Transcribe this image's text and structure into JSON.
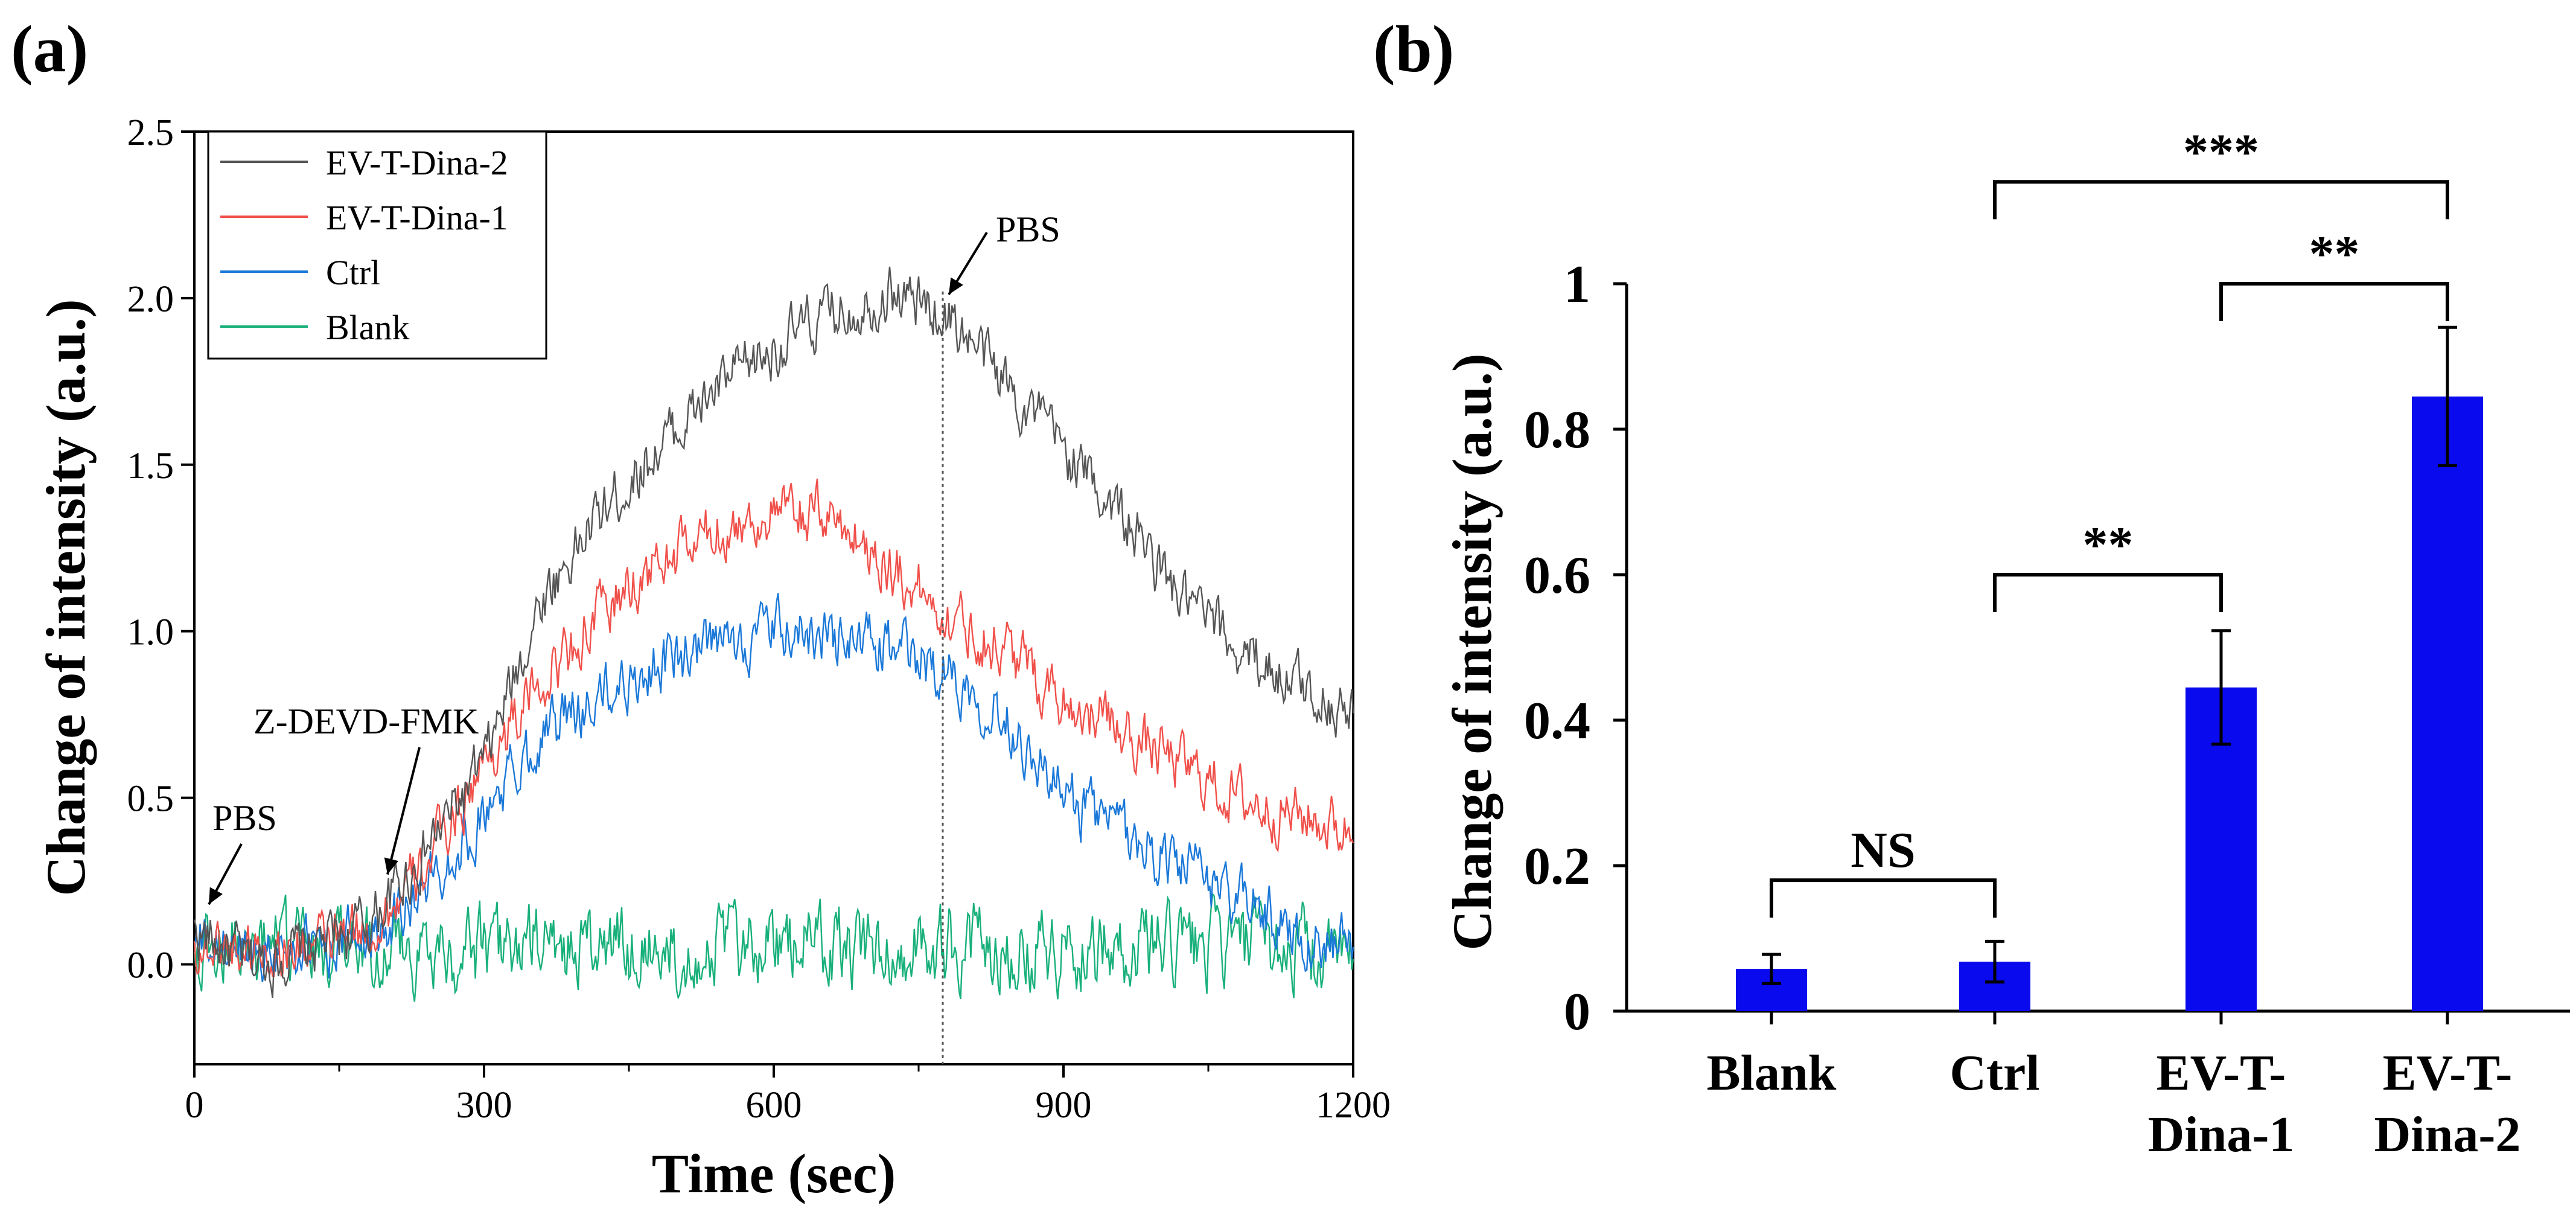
{
  "chart_data": [
    {
      "panel_label": "(a)",
      "type": "line",
      "title": "",
      "xlabel": "Time (sec)",
      "ylabel": "Change of intensity (a.u.)",
      "xlim": [
        0,
        1200
      ],
      "ylim": [
        -0.3,
        2.5
      ],
      "xticks": [
        0,
        300,
        600,
        900,
        1200
      ],
      "xtick_labels": [
        "0",
        "300",
        "600",
        "900",
        "1200"
      ],
      "yticks": [
        0.0,
        0.5,
        1.0,
        1.5,
        2.0,
        2.5
      ],
      "ytick_labels": [
        "0.0",
        "0.5",
        "1.0",
        "1.5",
        "2.0",
        "2.5"
      ],
      "grid": false,
      "legend_position": "top-left",
      "series": [
        {
          "name": "EV-T-Dina-2",
          "color": "#555555",
          "x": [
            0,
            60,
            120,
            180,
            230,
            300,
            360,
            420,
            480,
            540,
            600,
            660,
            720,
            780,
            840,
            900,
            960,
            1020,
            1080,
            1140,
            1200
          ],
          "y": [
            0.1,
            0.0,
            0.05,
            0.12,
            0.3,
            0.6,
            1.1,
            1.35,
            1.55,
            1.72,
            1.85,
            1.95,
            2.02,
            1.95,
            1.75,
            1.55,
            1.35,
            1.1,
            0.95,
            0.85,
            0.75
          ]
        },
        {
          "name": "EV-T-Dina-1",
          "color": "#f0504a",
          "x": [
            0,
            60,
            120,
            180,
            230,
            300,
            360,
            420,
            480,
            540,
            600,
            660,
            720,
            780,
            840,
            900,
            960,
            1020,
            1080,
            1140,
            1200
          ],
          "y": [
            0.05,
            0.05,
            0.05,
            0.1,
            0.25,
            0.6,
            0.85,
            1.05,
            1.2,
            1.3,
            1.35,
            1.35,
            1.2,
            1.05,
            0.95,
            0.8,
            0.7,
            0.6,
            0.5,
            0.45,
            0.4
          ]
        },
        {
          "name": "Ctrl",
          "color": "#1a78d8",
          "x": [
            0,
            60,
            120,
            180,
            230,
            300,
            360,
            420,
            480,
            540,
            600,
            660,
            720,
            780,
            840,
            900,
            960,
            1020,
            1080,
            1140,
            1200
          ],
          "y": [
            0.05,
            0.05,
            0.05,
            0.1,
            0.2,
            0.45,
            0.7,
            0.8,
            0.9,
            0.95,
            1.0,
            0.98,
            0.95,
            0.88,
            0.75,
            0.5,
            0.4,
            0.3,
            0.2,
            0.1,
            0.05
          ]
        },
        {
          "name": "Blank",
          "color": "#18b07a",
          "x": [
            0,
            60,
            120,
            180,
            240,
            300,
            360,
            420,
            480,
            540,
            600,
            660,
            720,
            780,
            840,
            900,
            960,
            1020,
            1080,
            1140,
            1200
          ],
          "y": [
            0.05,
            0.05,
            0.05,
            0.05,
            0.05,
            0.05,
            0.05,
            0.05,
            0.05,
            0.05,
            0.05,
            0.05,
            0.05,
            0.05,
            0.05,
            0.05,
            0.05,
            0.05,
            0.05,
            0.05,
            0.0
          ]
        }
      ],
      "annotations": [
        {
          "text": "PBS",
          "x": 15,
          "y": 0.18
        },
        {
          "text": "Z-DEVD-FMK",
          "x": 200,
          "y": 0.27
        },
        {
          "text": "PBS",
          "x": 775,
          "y": 2.02
        }
      ],
      "vline_x": 775
    },
    {
      "panel_label": "(b)",
      "type": "bar",
      "title": "",
      "xlabel": "",
      "ylabel": "Change of intensity (a.u.)",
      "categories": [
        [
          "Blank"
        ],
        [
          "Ctrl"
        ],
        [
          "EV-T-",
          "Dina-1"
        ],
        [
          "EV-T-",
          "Dina-2"
        ]
      ],
      "values": [
        0.058,
        0.068,
        0.445,
        0.845
      ],
      "errors": [
        0.02,
        0.028,
        0.078,
        0.095
      ],
      "bar_color": "#0a0aee",
      "ylim": [
        0,
        1
      ],
      "yticks": [
        0,
        0.2,
        0.4,
        0.6,
        0.8,
        1
      ],
      "ytick_labels": [
        "0",
        "0.2",
        "0.4",
        "0.6",
        "0.8",
        "1"
      ],
      "grid": false,
      "significance": [
        {
          "from": 0,
          "to": 1,
          "label": "NS",
          "y": 0.18
        },
        {
          "from": 1,
          "to": 2,
          "label": "**",
          "y": 0.6
        },
        {
          "from": 2,
          "to": 3,
          "label": "**",
          "y": 1.0
        },
        {
          "from": 1,
          "to": 3,
          "label": "***",
          "y": 1.14
        }
      ]
    }
  ]
}
